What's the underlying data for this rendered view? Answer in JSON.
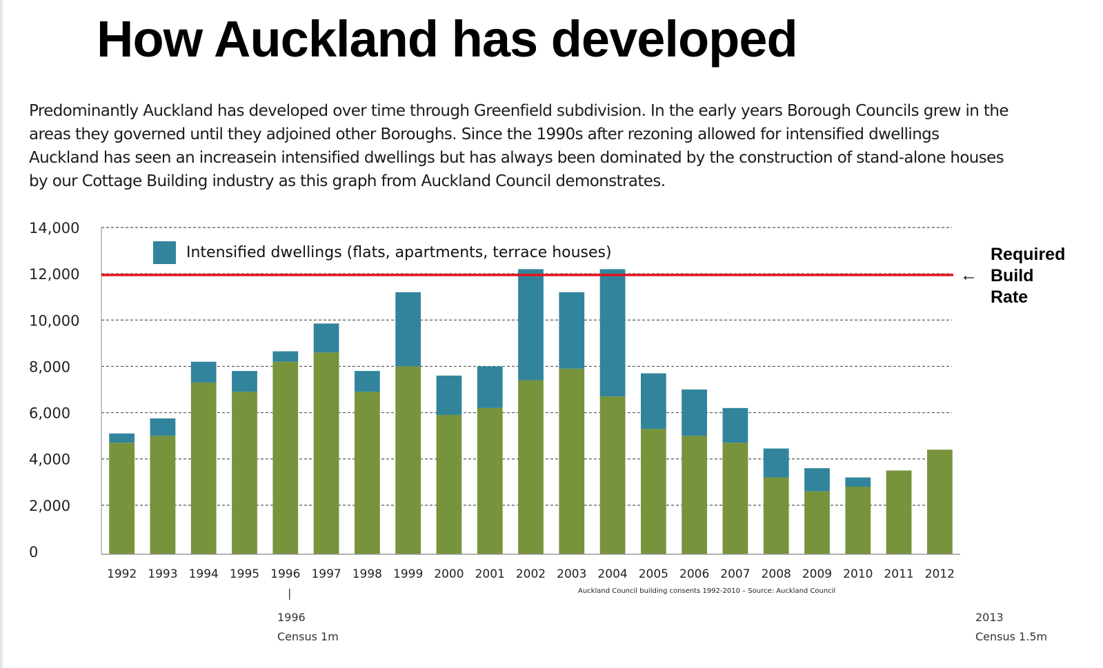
{
  "page": {
    "title": "How Auckland has developed",
    "intro_lines": [
      "Predominantly Auckland has developed over time through Greenfield subdivision.  In the early years Borough Councils grew in the",
      "areas they governed until they adjoined other Boroughs.  Since the 1990s after rezoning allowed for intensified dwellings",
      "Auckland has seen an increasein intensified dwellings but has always been dominated by the construction of stand-alone houses",
      "by our Cottage Building industry as this graph from Auckland Council demonstrates."
    ]
  },
  "chart_data": {
    "type": "bar",
    "stacked": true,
    "categories": [
      "1992",
      "1993",
      "1994",
      "1995",
      "1996",
      "1997",
      "1998",
      "1999",
      "2000",
      "2001",
      "2002",
      "2003",
      "2004",
      "2005",
      "2006",
      "2007",
      "2008",
      "2009",
      "2010",
      "2011",
      "2012"
    ],
    "series": [
      {
        "color": "#77933c",
        "values": [
          4700,
          5000,
          7300,
          6900,
          8200,
          8600,
          6900,
          8000,
          5900,
          6200,
          7400,
          7900,
          6700,
          5300,
          5000,
          4700,
          3200,
          2600,
          2800,
          3500,
          4400
        ]
      },
      {
        "name": "Intensified dwellings (flats, apartments, terrace houses)",
        "color": "#31849b",
        "values": [
          400,
          750,
          900,
          900,
          450,
          1250,
          900,
          3200,
          1700,
          1800,
          4800,
          3300,
          5500,
          2400,
          2000,
          1500,
          1250,
          1000,
          400,
          0,
          0
        ]
      }
    ],
    "ylim": [
      0,
      14000
    ],
    "yticks": [
      0,
      2000,
      4000,
      6000,
      8000,
      10000,
      12000,
      14000
    ],
    "ytick_labels": [
      "0",
      "2,000",
      "4,000",
      "6,000",
      "8,000",
      "10,000",
      "12,000",
      "14,000"
    ],
    "grid": true,
    "legend_position": "top-left",
    "reference_line": {
      "value": 11950,
      "color": "#e4141c",
      "label_lines": [
        "Required",
        "Build",
        "Rate"
      ],
      "arrow": "←"
    },
    "source_note": "Auckland Council building consents 1992-2010 – Source: Auckland Council",
    "census_marks": [
      {
        "tick": "|",
        "year": "1996",
        "label": "Census 1m"
      },
      {
        "year": "2013",
        "label": "Census 1.5m"
      }
    ]
  }
}
